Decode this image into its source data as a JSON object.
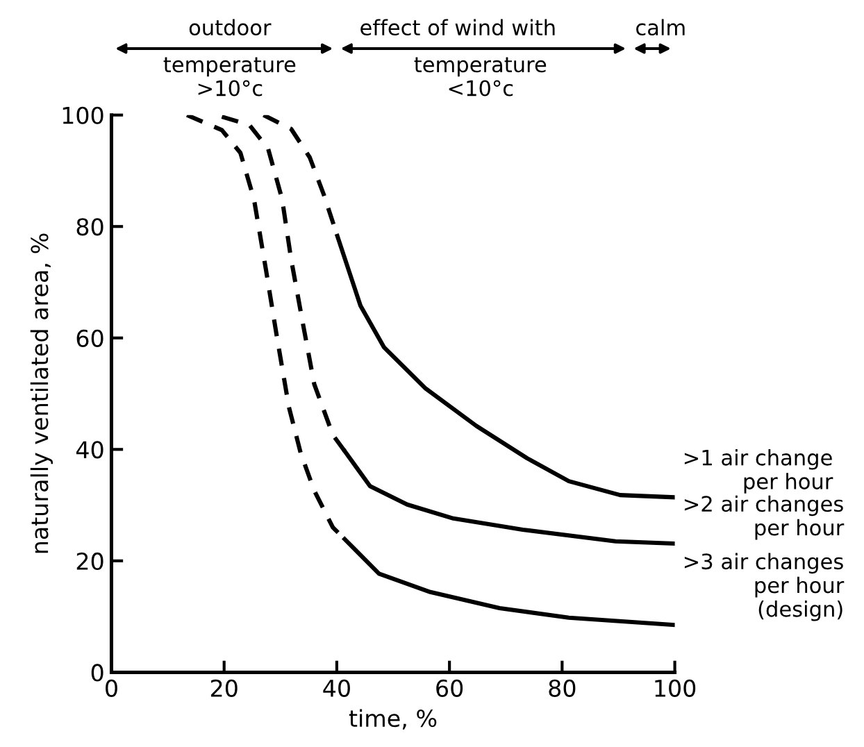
{
  "chart_data": {
    "type": "line",
    "xlabel": "time, %",
    "ylabel": "naturally ventilated area, %",
    "xlim": [
      0,
      100
    ],
    "ylim": [
      0,
      100
    ],
    "xticks": [
      0,
      20,
      40,
      60,
      80,
      100
    ],
    "yticks": [
      0,
      20,
      40,
      60,
      80,
      100
    ],
    "grid": false,
    "legend": false,
    "marker": "none",
    "annotations": [
      "outdoor",
      "temperature\n>10°c",
      "effect of wind with",
      "temperature\n<10°c",
      "calm"
    ],
    "series": [
      {
        "line_style": "dashed",
        "color": "#000000",
        "x": [
          27,
          31.9,
          35.2,
          37.7,
          40.1
        ],
        "values": [
          100,
          97.5,
          92.4,
          85.7,
          78.3
        ]
      },
      {
        "name": ">1 air change\nper hour",
        "line_style": "solid",
        "color": "#000000",
        "x": [
          40.1,
          44.2,
          48.4,
          55.8,
          64.8,
          73.8,
          81.2,
          90.3,
          100
        ],
        "values": [
          78.3,
          65.8,
          58.3,
          50.9,
          44.2,
          38.4,
          34.3,
          31.8,
          31.4
        ]
      },
      {
        "line_style": "dashed",
        "color": "#000000",
        "x": [
          19.6,
          24.5,
          27.8,
          30.3,
          31.9,
          34,
          36,
          39.3,
          41.4
        ],
        "values": [
          99.7,
          98.2,
          94,
          84.9,
          74.1,
          62.5,
          51.7,
          42.6,
          39.7
        ]
      },
      {
        "name": ">2 air changes\nper hour",
        "line_style": "solid",
        "color": "#000000",
        "x": [
          41.4,
          45.9,
          52.5,
          60.7,
          73,
          89.5,
          100
        ],
        "values": [
          39.7,
          33.4,
          30.1,
          27.6,
          25.6,
          23.5,
          23.1
        ]
      },
      {
        "line_style": "dashed",
        "color": "#000000",
        "x": [
          13.4,
          19.6,
          22.9,
          25.3,
          27.4,
          29.4,
          31.5,
          33.6,
          36,
          39.3,
          41.4
        ],
        "values": [
          100,
          97.3,
          93.2,
          84.9,
          72.4,
          60,
          47.6,
          39.3,
          32.6,
          26,
          23.9
        ]
      },
      {
        "name": ">3 air changes\nper hour\n(design)",
        "line_style": "solid",
        "color": "#000000",
        "x": [
          41.4,
          47.5,
          56.6,
          68.9,
          81.2,
          100
        ],
        "values": [
          23.9,
          17.7,
          14.4,
          11.5,
          9.8,
          8.5
        ]
      }
    ]
  }
}
